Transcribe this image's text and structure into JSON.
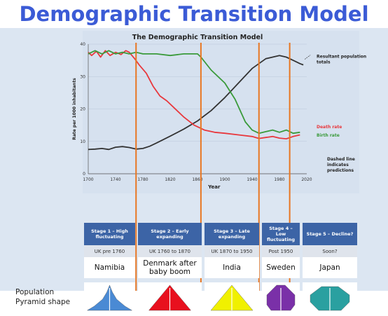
{
  "headline": "Demographic Transition Model",
  "chart_data": {
    "type": "line",
    "title": "The Demographic Transition Model",
    "xlabel": "Year",
    "ylabel": "Rate per 1000 inhabitants",
    "xlim": [
      1700,
      2020
    ],
    "ylim": [
      0,
      40
    ],
    "x_ticks": [
      1700,
      1740,
      1780,
      1820,
      1860,
      1900,
      1940,
      1980,
      2020
    ],
    "y_ticks": [
      0,
      10,
      20,
      30,
      40
    ],
    "stage_boundaries": [
      1770,
      1865,
      1950,
      1995
    ],
    "series": [
      {
        "name": "Resultant population totals",
        "color": "#333333",
        "x": [
          1700,
          1710,
          1720,
          1730,
          1740,
          1750,
          1760,
          1770,
          1780,
          1790,
          1800,
          1820,
          1840,
          1860,
          1880,
          1900,
          1920,
          1940,
          1960,
          1980,
          1990,
          2000,
          2010,
          2015
        ],
        "y": [
          7.5,
          7.6,
          7.8,
          7.5,
          8.2,
          8.4,
          8.1,
          7.6,
          7.8,
          8.5,
          9.5,
          11.6,
          13.8,
          16.3,
          19.5,
          23.5,
          28,
          32.5,
          35.5,
          36.5,
          36,
          35,
          34,
          33.6
        ]
      },
      {
        "name": "Death rate",
        "color": "#e8383d",
        "x": [
          1700,
          1705,
          1712,
          1718,
          1725,
          1732,
          1740,
          1748,
          1755,
          1760,
          1768,
          1775,
          1785,
          1795,
          1805,
          1815,
          1825,
          1840,
          1855,
          1870,
          1885,
          1900,
          1920,
          1940,
          1950,
          1960,
          1970,
          1980,
          1990,
          2000,
          2010
        ],
        "y": [
          37.5,
          36.5,
          37.8,
          36,
          38,
          36.5,
          37.5,
          36.8,
          38,
          37.5,
          35.5,
          33.5,
          31,
          27,
          24,
          22.5,
          20.5,
          17.5,
          15,
          13.5,
          12.8,
          12.5,
          12,
          11.5,
          10.9,
          11.2,
          11.5,
          11,
          10.8,
          11.5,
          12
        ]
      },
      {
        "name": "Birth rate",
        "color": "#3a9a3a",
        "x": [
          1700,
          1710,
          1720,
          1730,
          1740,
          1750,
          1760,
          1770,
          1780,
          1800,
          1820,
          1840,
          1860,
          1865,
          1880,
          1900,
          1915,
          1930,
          1940,
          1950,
          1960,
          1970,
          1980,
          1990,
          2000,
          2010
        ],
        "y": [
          37,
          38,
          37,
          38,
          37,
          37.5,
          37,
          37.5,
          37,
          37,
          36.5,
          37,
          37,
          36,
          32,
          28,
          23,
          16,
          13.5,
          12.5,
          13,
          13.5,
          12.8,
          13.5,
          12.5,
          12.8
        ]
      }
    ],
    "annotations": {
      "population": "Resultant population totals",
      "death": "Death rate",
      "birth": "Birth rate",
      "dashed_note": "Dashed line indicates predictions"
    }
  },
  "stages": [
    {
      "header": "Stage 1 – High fluctuating",
      "example": "UK pre 1760",
      "country": "Namibia",
      "pyramid_color": "#4a8ad4",
      "shape": "tall"
    },
    {
      "header": "Stage 2 – Early expanding",
      "example": "UK 1760 to 1870",
      "country": "Denmark after baby boom",
      "pyramid_color": "#e8101e",
      "shape": "wide"
    },
    {
      "header": "Stage 3 – Late expanding",
      "example": "UK  1870 to 1950",
      "country": "India",
      "pyramid_color": "#f0f000",
      "shape": "wide"
    },
    {
      "header": "Stage 4 – Low fluctuating",
      "example": "Post 1950",
      "country": "Sweden",
      "pyramid_color": "#7a30a8",
      "shape": "barrel"
    },
    {
      "header": "Stage 5 – Decline?",
      "example": "Soon?",
      "country": "Japan",
      "pyramid_color": "#2aa0a0",
      "shape": "inverted"
    }
  ],
  "pyramid_label": "Population Pyramid shape"
}
